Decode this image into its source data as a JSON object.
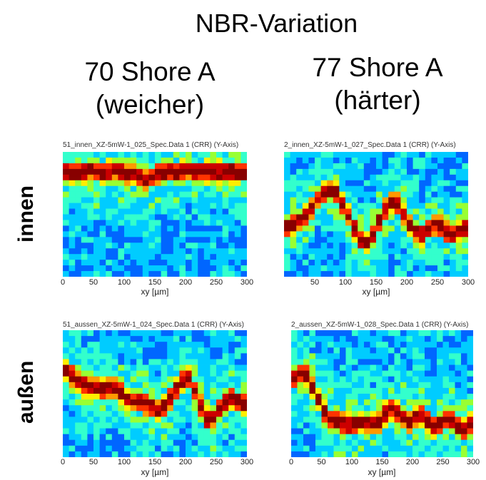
{
  "title": "NBR-Variation",
  "columns": [
    {
      "line1": "70 Shore A",
      "line2": "(weicher)"
    },
    {
      "line1": "77 Shore A",
      "line2": "(härter)"
    }
  ],
  "rows": [
    {
      "label": "innen"
    },
    {
      "label": "außen"
    }
  ],
  "colormap": [
    "#0000aa",
    "#0066ff",
    "#00ccff",
    "#33ffcc",
    "#99ff33",
    "#ffee00",
    "#ff9900",
    "#ff3300",
    "#cc0000",
    "#880000"
  ],
  "chart_data": [
    {
      "type": "heatmap",
      "title": "51_innen_XZ-5mW-1_025_Spec.Data 1 (CRR) (Y-Axis)",
      "xlabel": "xy [µm]",
      "xticks": [
        "0",
        "50",
        "100",
        "150",
        "200",
        "250",
        "300"
      ],
      "xlim": [
        0,
        300
      ],
      "band_profile": [
        0.16,
        0.16,
        0.17,
        0.16,
        0.15,
        0.16,
        0.17,
        0.16,
        0.15,
        0.16,
        0.17,
        0.18,
        0.2,
        0.22,
        0.2,
        0.18,
        0.17,
        0.16,
        0.17,
        0.16,
        0.15,
        0.16,
        0.17,
        0.16,
        0.15,
        0.16,
        0.17,
        0.16,
        0.17,
        0.16
      ]
    },
    {
      "type": "heatmap",
      "title": "2_innen_XZ-5mW-1_027_Spec.Data 1 (CRR) (Y-Axis)",
      "xlabel": "xy [µm]",
      "xticks": [
        "50",
        "100",
        "150",
        "200",
        "250",
        "300"
      ],
      "xlim": [
        0,
        300
      ],
      "band_profile": [
        0.6,
        0.58,
        0.56,
        0.52,
        0.45,
        0.38,
        0.32,
        0.3,
        0.34,
        0.42,
        0.52,
        0.62,
        0.7,
        0.72,
        0.66,
        0.56,
        0.46,
        0.4,
        0.42,
        0.5,
        0.58,
        0.64,
        0.66,
        0.62,
        0.58,
        0.6,
        0.64,
        0.66,
        0.64,
        0.62
      ]
    },
    {
      "type": "heatmap",
      "title": "51_aussen_XZ-5mW-1_024_Spec.Data 1 (CRR) (Y-Axis)",
      "xlabel": "xy [µm]",
      "xticks": [
        "0",
        "50",
        "100",
        "150",
        "200",
        "250",
        "300"
      ],
      "xlim": [
        0,
        300
      ],
      "band_profile": [
        0.32,
        0.36,
        0.4,
        0.43,
        0.45,
        0.46,
        0.46,
        0.45,
        0.46,
        0.5,
        0.54,
        0.56,
        0.56,
        0.58,
        0.6,
        0.62,
        0.6,
        0.54,
        0.46,
        0.4,
        0.38,
        0.48,
        0.6,
        0.7,
        0.7,
        0.62,
        0.56,
        0.54,
        0.56,
        0.58
      ]
    },
    {
      "type": "heatmap",
      "title": "2_aussen_XZ-5mW-1_028_Spec.Data 1 (CRR) (Y-Axis)",
      "xlabel": "xy [µm]",
      "xticks": [
        "0",
        "50",
        "100",
        "150",
        "200",
        "250",
        "300"
      ],
      "xlim": [
        0,
        300
      ],
      "band_profile": [
        0.38,
        0.34,
        0.36,
        0.44,
        0.55,
        0.64,
        0.7,
        0.72,
        0.73,
        0.74,
        0.74,
        0.73,
        0.74,
        0.74,
        0.72,
        0.66,
        0.62,
        0.64,
        0.7,
        0.72,
        0.68,
        0.66,
        0.72,
        0.76,
        0.74,
        0.7,
        0.72,
        0.76,
        0.78,
        0.74
      ]
    }
  ]
}
